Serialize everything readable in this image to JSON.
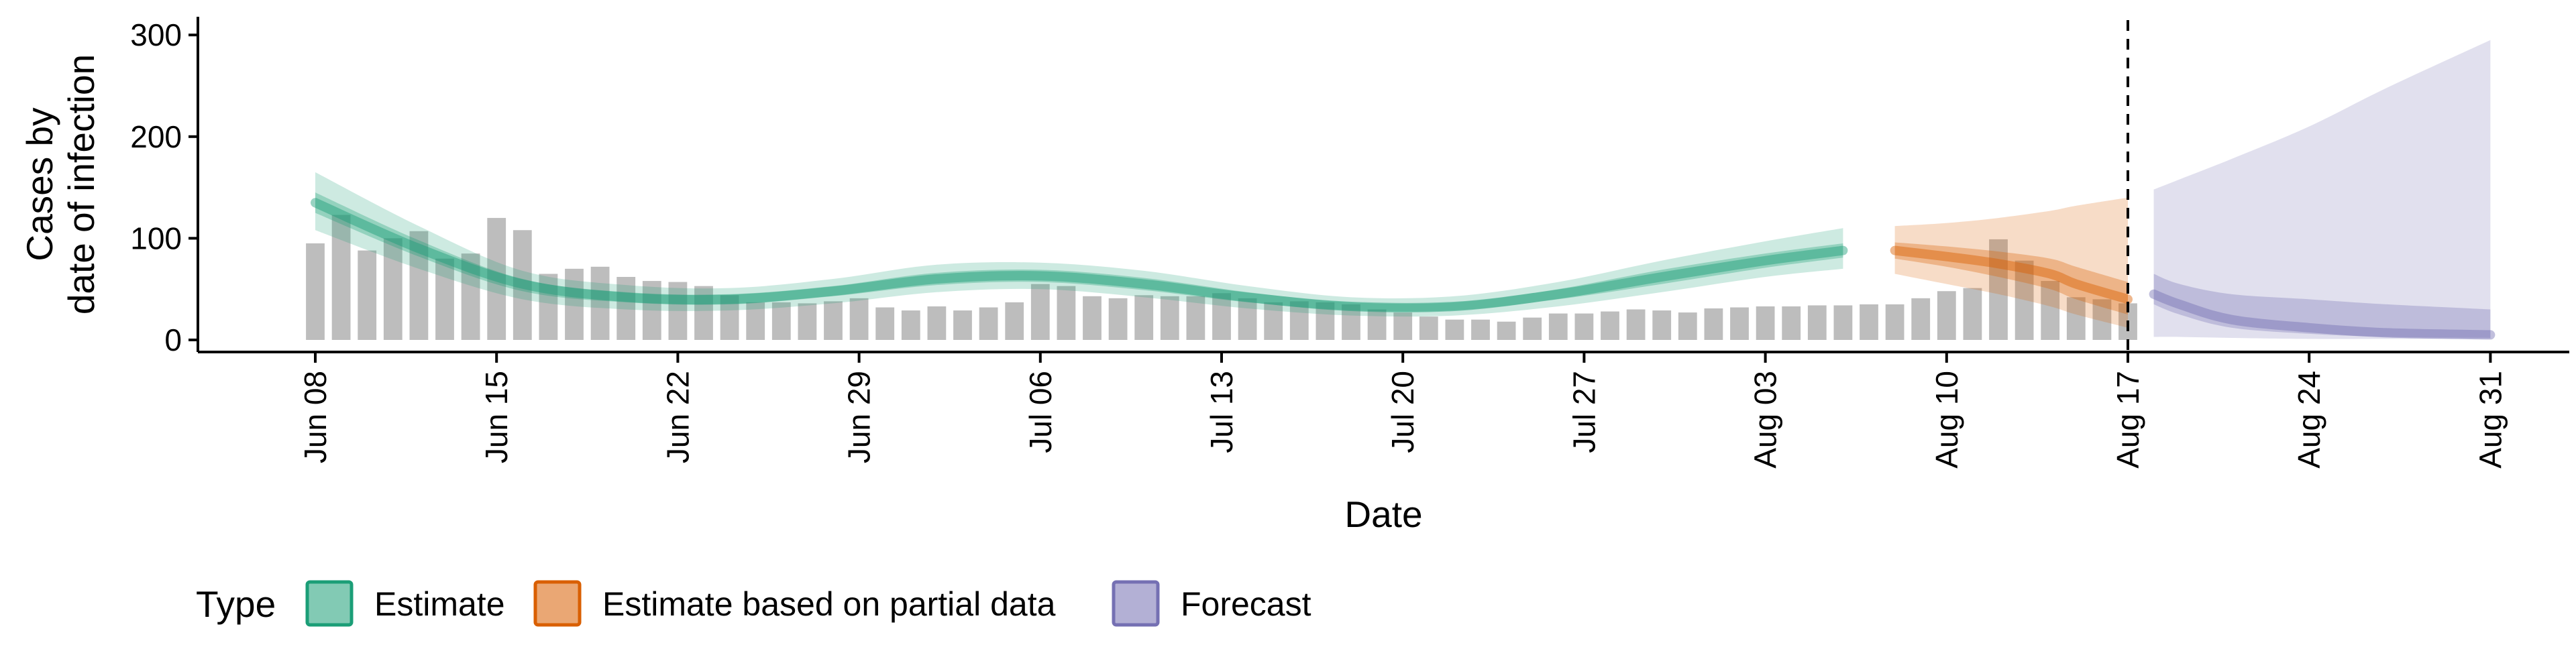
{
  "chart_data": {
    "type": "area",
    "xlabel": "Date",
    "ylabel_lines": [
      "Cases by",
      "date of infection"
    ],
    "ylim": [
      0,
      310
    ],
    "yticks": [
      0,
      100,
      200,
      300
    ],
    "x_start": "2020-06-08",
    "xticks": [
      {
        "label": "Jun 08",
        "day": 0
      },
      {
        "label": "Jun 15",
        "day": 7
      },
      {
        "label": "Jun 22",
        "day": 14
      },
      {
        "label": "Jun 29",
        "day": 21
      },
      {
        "label": "Jul 06",
        "day": 28
      },
      {
        "label": "Jul 13",
        "day": 35
      },
      {
        "label": "Jul 20",
        "day": 42
      },
      {
        "label": "Jul 27",
        "day": 49
      },
      {
        "label": "Aug 03",
        "day": 56
      },
      {
        "label": "Aug 10",
        "day": 63
      },
      {
        "label": "Aug 17",
        "day": 70
      },
      {
        "label": "Aug 24",
        "day": 77
      },
      {
        "label": "Aug 31",
        "day": 84
      }
    ],
    "forecast_start_line": "Aug 17",
    "reported_cases": {
      "first_date": "Jun 08",
      "values": [
        95,
        123,
        88,
        100,
        107,
        80,
        85,
        120,
        108,
        65,
        70,
        72,
        62,
        58,
        57,
        53,
        44,
        37,
        37,
        36,
        38,
        41,
        32,
        29,
        33,
        29,
        32,
        37,
        55,
        53,
        43,
        41,
        44,
        43,
        43,
        46,
        41,
        37,
        38,
        37,
        35,
        30,
        27,
        23,
        20,
        20,
        18,
        22,
        26,
        26,
        28,
        30,
        29,
        27,
        31,
        32,
        33,
        33,
        34,
        34,
        35,
        35,
        41,
        48,
        51,
        99,
        78,
        58,
        42,
        40,
        36
      ]
    },
    "series": [
      {
        "name": "Estimate",
        "color": "#1b9e77",
        "days": [
          0,
          4,
          8,
          12,
          16,
          20,
          24,
          28,
          32,
          36,
          40,
          44,
          48,
          52,
          56,
          59
        ],
        "median": [
          135,
          90,
          55,
          42,
          40,
          48,
          60,
          63,
          55,
          42,
          33,
          33,
          45,
          62,
          78,
          88
        ],
        "inner_lower": [
          125,
          82,
          48,
          37,
          35,
          43,
          54,
          57,
          49,
          37,
          29,
          29,
          40,
          55,
          71,
          81
        ],
        "inner_upper": [
          145,
          98,
          60,
          47,
          45,
          53,
          66,
          69,
          61,
          47,
          37,
          37,
          50,
          69,
          85,
          95
        ],
        "outer_lower": [
          108,
          70,
          40,
          30,
          29,
          36,
          47,
          50,
          42,
          31,
          24,
          24,
          33,
          47,
          62,
          70
        ],
        "outer_upper": [
          165,
          112,
          68,
          54,
          51,
          60,
          74,
          76,
          68,
          53,
          42,
          43,
          57,
          78,
          97,
          110
        ]
      },
      {
        "name": "Estimate based on partial data",
        "color": "#d95f02",
        "days": [
          61,
          63,
          65,
          67,
          68,
          70
        ],
        "median": [
          88,
          82,
          75,
          65,
          55,
          40
        ],
        "inner_lower": [
          80,
          72,
          62,
          50,
          40,
          25
        ],
        "inner_upper": [
          96,
          92,
          87,
          80,
          72,
          57
        ],
        "outer_lower": [
          65,
          55,
          45,
          33,
          25,
          12
        ],
        "outer_upper": [
          112,
          115,
          120,
          127,
          132,
          140
        ]
      },
      {
        "name": "Forecast",
        "color": "#7570b3",
        "days": [
          71,
          72,
          74,
          77,
          80,
          84
        ],
        "median": [
          45,
          35,
          20,
          12,
          7,
          5
        ],
        "inner_lower": [
          35,
          25,
          12,
          6,
          3,
          2
        ],
        "inner_upper": [
          65,
          55,
          45,
          40,
          35,
          30
        ],
        "outer_lower": [
          3,
          3,
          2,
          1,
          1,
          1
        ],
        "outer_upper": [
          148,
          158,
          178,
          210,
          248,
          295
        ]
      }
    ],
    "legend": {
      "title": "Type",
      "position": "bottom",
      "entries": [
        "Estimate",
        "Estimate based on partial data",
        "Forecast"
      ]
    },
    "grid": false
  }
}
